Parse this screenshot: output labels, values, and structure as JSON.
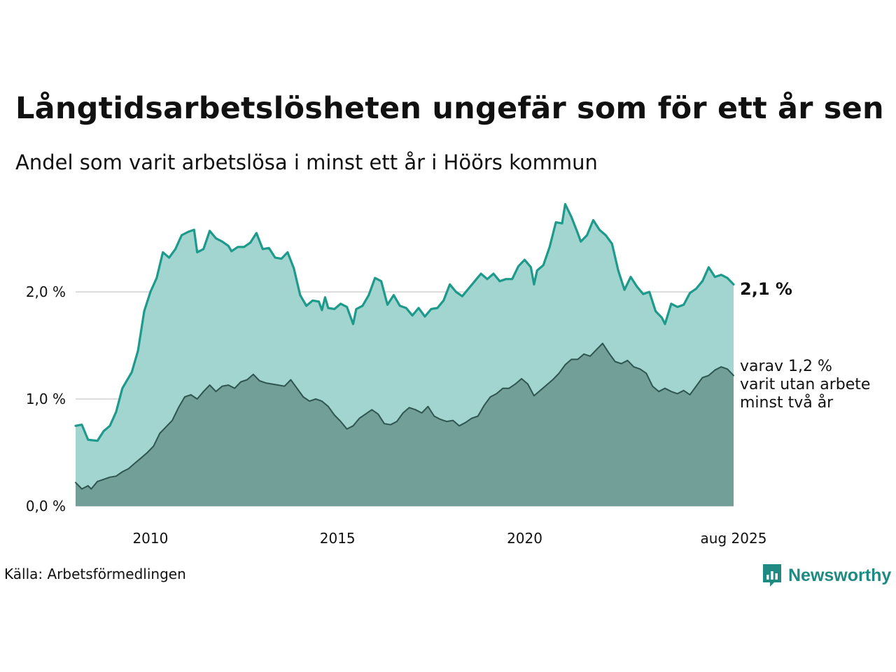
{
  "title": "Långtidsarbetslösheten ungefär som för ett år sen",
  "subtitle": "Andel som varit arbetslösa i minst ett år i Höörs kommun",
  "source": "Källa: Arbetsförmedlingen",
  "brand": "Newsworthy",
  "colors": {
    "one_year_fill": "#a2d5cf",
    "one_year_line": "#1d9a8b",
    "two_year_fill": "#729f98",
    "two_year_line": "#2f5550",
    "grid": "#dddddd",
    "brand": "#1f8a82"
  },
  "icons": [
    "newsworthy-logo-icon"
  ],
  "chart_data": {
    "type": "area",
    "ylim": [
      0,
      2.85
    ],
    "yticks": [
      {
        "value": 0,
        "label": "0,0 %"
      },
      {
        "value": 1,
        "label": "1,0 %"
      },
      {
        "value": 2,
        "label": "2,0 %"
      }
    ],
    "xticks": [
      {
        "value": "2010-01",
        "label": "2010"
      },
      {
        "value": "2015-01",
        "label": "2015"
      },
      {
        "value": "2020-01",
        "label": "2020"
      },
      {
        "value": "2025-08",
        "label": "aug 2025"
      }
    ],
    "grid": "horizontal",
    "end_labels": {
      "main": "2,1 %",
      "secondary": [
        "varav 1,2 %",
        "varit utan arbete",
        "minst två år"
      ]
    },
    "series": [
      {
        "key": "one_year",
        "points": [
          [
            "2008-01",
            0.75
          ],
          [
            "2008-03",
            0.76
          ],
          [
            "2008-05",
            0.62
          ],
          [
            "2008-08",
            0.61
          ],
          [
            "2008-10",
            0.7
          ],
          [
            "2008-12",
            0.75
          ],
          [
            "2009-02",
            0.88
          ],
          [
            "2009-04",
            1.1
          ],
          [
            "2009-07",
            1.25
          ],
          [
            "2009-09",
            1.45
          ],
          [
            "2009-11",
            1.82
          ],
          [
            "2010-01",
            2.0
          ],
          [
            "2010-03",
            2.13
          ],
          [
            "2010-05",
            2.37
          ],
          [
            "2010-07",
            2.32
          ],
          [
            "2010-09",
            2.4
          ],
          [
            "2010-11",
            2.53
          ],
          [
            "2011-01",
            2.56
          ],
          [
            "2011-03",
            2.58
          ],
          [
            "2011-04",
            2.37
          ],
          [
            "2011-06",
            2.4
          ],
          [
            "2011-08",
            2.57
          ],
          [
            "2011-10",
            2.5
          ],
          [
            "2011-12",
            2.47
          ],
          [
            "2012-02",
            2.43
          ],
          [
            "2012-03",
            2.38
          ],
          [
            "2012-05",
            2.42
          ],
          [
            "2012-07",
            2.42
          ],
          [
            "2012-09",
            2.46
          ],
          [
            "2012-11",
            2.55
          ],
          [
            "2013-01",
            2.4
          ],
          [
            "2013-03",
            2.41
          ],
          [
            "2013-05",
            2.32
          ],
          [
            "2013-07",
            2.31
          ],
          [
            "2013-09",
            2.37
          ],
          [
            "2013-11",
            2.22
          ],
          [
            "2014-01",
            1.97
          ],
          [
            "2014-03",
            1.87
          ],
          [
            "2014-05",
            1.92
          ],
          [
            "2014-07",
            1.91
          ],
          [
            "2014-08",
            1.83
          ],
          [
            "2014-09",
            1.95
          ],
          [
            "2014-10",
            1.85
          ],
          [
            "2014-12",
            1.84
          ],
          [
            "2015-02",
            1.89
          ],
          [
            "2015-04",
            1.86
          ],
          [
            "2015-06",
            1.7
          ],
          [
            "2015-07",
            1.84
          ],
          [
            "2015-09",
            1.87
          ],
          [
            "2015-11",
            1.97
          ],
          [
            "2016-01",
            2.13
          ],
          [
            "2016-03",
            2.1
          ],
          [
            "2016-05",
            1.88
          ],
          [
            "2016-07",
            1.97
          ],
          [
            "2016-09",
            1.87
          ],
          [
            "2016-11",
            1.85
          ],
          [
            "2017-01",
            1.78
          ],
          [
            "2017-03",
            1.85
          ],
          [
            "2017-05",
            1.77
          ],
          [
            "2017-07",
            1.84
          ],
          [
            "2017-09",
            1.85
          ],
          [
            "2017-11",
            1.92
          ],
          [
            "2018-01",
            2.07
          ],
          [
            "2018-03",
            2.0
          ],
          [
            "2018-05",
            1.96
          ],
          [
            "2018-07",
            2.03
          ],
          [
            "2018-09",
            2.1
          ],
          [
            "2018-11",
            2.17
          ],
          [
            "2019-01",
            2.12
          ],
          [
            "2019-03",
            2.17
          ],
          [
            "2019-05",
            2.1
          ],
          [
            "2019-07",
            2.12
          ],
          [
            "2019-09",
            2.12
          ],
          [
            "2019-11",
            2.24
          ],
          [
            "2020-01",
            2.3
          ],
          [
            "2020-03",
            2.23
          ],
          [
            "2020-04",
            2.07
          ],
          [
            "2020-05",
            2.2
          ],
          [
            "2020-07",
            2.25
          ],
          [
            "2020-09",
            2.42
          ],
          [
            "2020-11",
            2.65
          ],
          [
            "2021-01",
            2.64
          ],
          [
            "2021-02",
            2.82
          ],
          [
            "2021-04",
            2.7
          ],
          [
            "2021-06",
            2.55
          ],
          [
            "2021-07",
            2.47
          ],
          [
            "2021-09",
            2.53
          ],
          [
            "2021-11",
            2.67
          ],
          [
            "2022-01",
            2.58
          ],
          [
            "2022-03",
            2.53
          ],
          [
            "2022-05",
            2.45
          ],
          [
            "2022-07",
            2.2
          ],
          [
            "2022-09",
            2.02
          ],
          [
            "2022-11",
            2.14
          ],
          [
            "2023-01",
            2.05
          ],
          [
            "2023-03",
            1.98
          ],
          [
            "2023-05",
            2.0
          ],
          [
            "2023-07",
            1.82
          ],
          [
            "2023-09",
            1.76
          ],
          [
            "2023-10",
            1.7
          ],
          [
            "2023-12",
            1.89
          ],
          [
            "2024-02",
            1.86
          ],
          [
            "2024-04",
            1.88
          ],
          [
            "2024-06",
            1.99
          ],
          [
            "2024-08",
            2.03
          ],
          [
            "2024-10",
            2.1
          ],
          [
            "2024-12",
            2.23
          ],
          [
            "2025-02",
            2.14
          ],
          [
            "2025-04",
            2.16
          ],
          [
            "2025-06",
            2.13
          ],
          [
            "2025-08",
            2.07
          ]
        ]
      },
      {
        "key": "two_year",
        "points": [
          [
            "2008-01",
            0.22
          ],
          [
            "2008-03",
            0.16
          ],
          [
            "2008-05",
            0.19
          ],
          [
            "2008-06",
            0.16
          ],
          [
            "2008-08",
            0.23
          ],
          [
            "2008-10",
            0.25
          ],
          [
            "2008-12",
            0.27
          ],
          [
            "2009-02",
            0.28
          ],
          [
            "2009-04",
            0.32
          ],
          [
            "2009-06",
            0.35
          ],
          [
            "2009-08",
            0.4
          ],
          [
            "2009-10",
            0.45
          ],
          [
            "2009-12",
            0.5
          ],
          [
            "2010-02",
            0.56
          ],
          [
            "2010-04",
            0.68
          ],
          [
            "2010-06",
            0.74
          ],
          [
            "2010-08",
            0.8
          ],
          [
            "2010-10",
            0.92
          ],
          [
            "2010-12",
            1.02
          ],
          [
            "2011-02",
            1.04
          ],
          [
            "2011-04",
            1.0
          ],
          [
            "2011-06",
            1.07
          ],
          [
            "2011-08",
            1.13
          ],
          [
            "2011-10",
            1.07
          ],
          [
            "2011-12",
            1.12
          ],
          [
            "2012-02",
            1.13
          ],
          [
            "2012-04",
            1.1
          ],
          [
            "2012-06",
            1.16
          ],
          [
            "2012-08",
            1.18
          ],
          [
            "2012-10",
            1.23
          ],
          [
            "2012-12",
            1.17
          ],
          [
            "2013-02",
            1.15
          ],
          [
            "2013-04",
            1.14
          ],
          [
            "2013-06",
            1.13
          ],
          [
            "2013-08",
            1.12
          ],
          [
            "2013-10",
            1.18
          ],
          [
            "2013-12",
            1.1
          ],
          [
            "2014-02",
            1.02
          ],
          [
            "2014-04",
            0.98
          ],
          [
            "2014-06",
            1.0
          ],
          [
            "2014-08",
            0.98
          ],
          [
            "2014-10",
            0.93
          ],
          [
            "2014-12",
            0.85
          ],
          [
            "2015-02",
            0.79
          ],
          [
            "2015-04",
            0.72
          ],
          [
            "2015-06",
            0.75
          ],
          [
            "2015-08",
            0.82
          ],
          [
            "2015-10",
            0.86
          ],
          [
            "2015-12",
            0.9
          ],
          [
            "2016-02",
            0.86
          ],
          [
            "2016-04",
            0.77
          ],
          [
            "2016-06",
            0.76
          ],
          [
            "2016-08",
            0.79
          ],
          [
            "2016-10",
            0.87
          ],
          [
            "2016-12",
            0.92
          ],
          [
            "2017-02",
            0.9
          ],
          [
            "2017-04",
            0.87
          ],
          [
            "2017-06",
            0.93
          ],
          [
            "2017-08",
            0.84
          ],
          [
            "2017-10",
            0.81
          ],
          [
            "2017-12",
            0.79
          ],
          [
            "2018-02",
            0.8
          ],
          [
            "2018-04",
            0.75
          ],
          [
            "2018-06",
            0.78
          ],
          [
            "2018-08",
            0.82
          ],
          [
            "2018-10",
            0.84
          ],
          [
            "2018-12",
            0.94
          ],
          [
            "2019-02",
            1.02
          ],
          [
            "2019-04",
            1.05
          ],
          [
            "2019-06",
            1.1
          ],
          [
            "2019-08",
            1.1
          ],
          [
            "2019-10",
            1.14
          ],
          [
            "2019-12",
            1.19
          ],
          [
            "2020-02",
            1.14
          ],
          [
            "2020-04",
            1.03
          ],
          [
            "2020-06",
            1.08
          ],
          [
            "2020-08",
            1.13
          ],
          [
            "2020-10",
            1.18
          ],
          [
            "2020-12",
            1.24
          ],
          [
            "2021-02",
            1.32
          ],
          [
            "2021-04",
            1.37
          ],
          [
            "2021-06",
            1.37
          ],
          [
            "2021-08",
            1.42
          ],
          [
            "2021-10",
            1.4
          ],
          [
            "2021-12",
            1.46
          ],
          [
            "2022-02",
            1.52
          ],
          [
            "2022-04",
            1.43
          ],
          [
            "2022-06",
            1.35
          ],
          [
            "2022-08",
            1.33
          ],
          [
            "2022-10",
            1.36
          ],
          [
            "2022-12",
            1.3
          ],
          [
            "2023-02",
            1.28
          ],
          [
            "2023-04",
            1.24
          ],
          [
            "2023-06",
            1.12
          ],
          [
            "2023-08",
            1.07
          ],
          [
            "2023-10",
            1.1
          ],
          [
            "2023-12",
            1.07
          ],
          [
            "2024-02",
            1.05
          ],
          [
            "2024-04",
            1.08
          ],
          [
            "2024-06",
            1.04
          ],
          [
            "2024-08",
            1.12
          ],
          [
            "2024-10",
            1.2
          ],
          [
            "2024-12",
            1.22
          ],
          [
            "2025-02",
            1.27
          ],
          [
            "2025-04",
            1.3
          ],
          [
            "2025-06",
            1.28
          ],
          [
            "2025-08",
            1.22
          ]
        ]
      }
    ]
  }
}
